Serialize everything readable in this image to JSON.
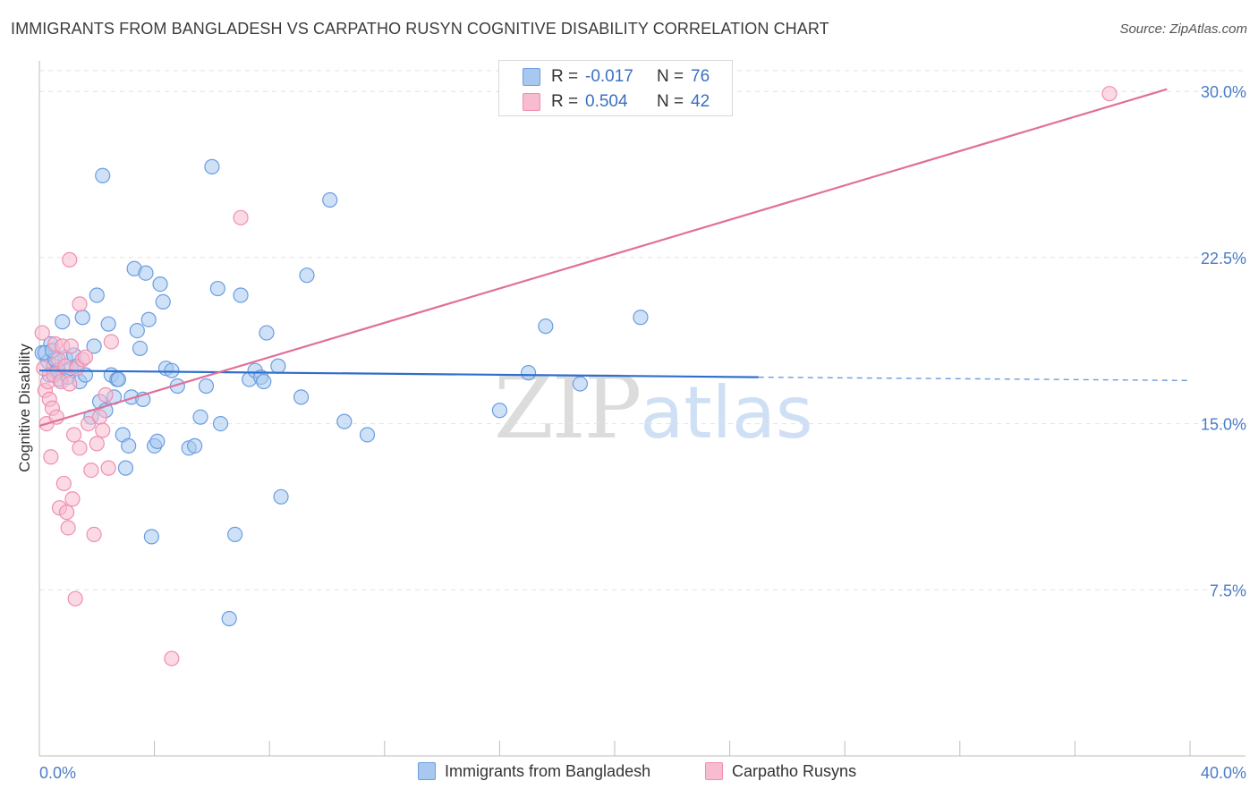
{
  "header": {
    "title": "IMMIGRANTS FROM BANGLADESH VS CARPATHO RUSYN COGNITIVE DISABILITY CORRELATION CHART",
    "source": "Source: ZipAtlas.com"
  },
  "watermark": {
    "zip": "ZIP",
    "atlas": "atlas"
  },
  "legend_top": {
    "rows": [
      {
        "r_label": "R = ",
        "r_value": "-0.017",
        "n_label": "N = ",
        "n_value": "76",
        "color": "#a8c8f0"
      },
      {
        "r_label": "R = ",
        "r_value": "0.504",
        "n_label": "N = ",
        "n_value": "42",
        "color": "#f8bcd0"
      }
    ]
  },
  "legend_bottom": {
    "items": [
      {
        "label": "Immigrants from Bangladesh",
        "color": "#a8c8f0"
      },
      {
        "label": "Carpatho Rusyns",
        "color": "#f8bcd0"
      }
    ]
  },
  "chart_data": {
    "type": "scatter",
    "title": "IMMIGRANTS FROM BANGLADESH VS CARPATHO RUSYN COGNITIVE DISABILITY CORRELATION CHART",
    "ylabel": "Cognitive Disability",
    "xlabel": "",
    "xlim": [
      0,
      40
    ],
    "ylim": [
      0,
      31.3
    ],
    "x_tick_labels": [
      "0.0%",
      "40.0%"
    ],
    "y_ticks": [
      7.5,
      15.0,
      22.5,
      30.0
    ],
    "y_tick_labels": [
      "7.5%",
      "15.0%",
      "22.5%",
      "30.0%"
    ],
    "grid": true,
    "legend_position": "top-center",
    "series": [
      {
        "name": "Immigrants from Bangladesh",
        "color": "#6a9de0",
        "fill": "#a8c8f0",
        "r": -0.017,
        "n": 76,
        "trend": {
          "x": [
            0,
            25
          ],
          "y": [
            17.4,
            17.1
          ],
          "dashed_to": [
            40,
            16.95
          ],
          "color": "#2f6fcc"
        },
        "points": [
          [
            0.1,
            18.2
          ],
          [
            0.3,
            17.8
          ],
          [
            0.4,
            18.6
          ],
          [
            0.5,
            17.6
          ],
          [
            0.6,
            17.3
          ],
          [
            0.7,
            17.0
          ],
          [
            0.8,
            19.6
          ],
          [
            0.9,
            18.0
          ],
          [
            1.0,
            17.1
          ],
          [
            1.1,
            17.5
          ],
          [
            1.2,
            18.1
          ],
          [
            1.3,
            17.6
          ],
          [
            1.4,
            16.9
          ],
          [
            1.5,
            19.8
          ],
          [
            1.6,
            17.2
          ],
          [
            1.8,
            15.3
          ],
          [
            1.9,
            18.5
          ],
          [
            2.0,
            20.8
          ],
          [
            2.1,
            16.0
          ],
          [
            2.2,
            26.2
          ],
          [
            2.3,
            15.6
          ],
          [
            2.4,
            19.5
          ],
          [
            2.5,
            17.2
          ],
          [
            2.6,
            16.2
          ],
          [
            2.7,
            17.0
          ],
          [
            2.9,
            14.5
          ],
          [
            3.0,
            13.0
          ],
          [
            3.1,
            14.0
          ],
          [
            3.2,
            16.2
          ],
          [
            3.3,
            22.0
          ],
          [
            3.4,
            19.2
          ],
          [
            3.5,
            18.4
          ],
          [
            3.6,
            16.1
          ],
          [
            3.7,
            21.8
          ],
          [
            3.8,
            19.7
          ],
          [
            3.9,
            9.9
          ],
          [
            4.0,
            14.0
          ],
          [
            4.1,
            14.2
          ],
          [
            4.2,
            21.3
          ],
          [
            4.3,
            20.5
          ],
          [
            4.4,
            17.5
          ],
          [
            4.6,
            17.4
          ],
          [
            4.8,
            16.7
          ],
          [
            5.2,
            13.9
          ],
          [
            5.4,
            14.0
          ],
          [
            5.6,
            15.3
          ],
          [
            5.8,
            16.7
          ],
          [
            6.0,
            26.6
          ],
          [
            6.2,
            21.1
          ],
          [
            6.3,
            15.0
          ],
          [
            6.6,
            6.2
          ],
          [
            6.8,
            10.0
          ],
          [
            7.0,
            20.8
          ],
          [
            7.3,
            17.0
          ],
          [
            7.5,
            17.4
          ],
          [
            7.7,
            17.1
          ],
          [
            7.8,
            16.9
          ],
          [
            7.9,
            19.1
          ],
          [
            8.3,
            17.6
          ],
          [
            8.4,
            11.7
          ],
          [
            9.1,
            16.2
          ],
          [
            9.3,
            21.7
          ],
          [
            10.1,
            25.1
          ],
          [
            10.6,
            15.1
          ],
          [
            11.4,
            14.5
          ],
          [
            16.0,
            15.6
          ],
          [
            17.0,
            17.3
          ],
          [
            17.6,
            19.4
          ],
          [
            18.8,
            16.8
          ],
          [
            20.9,
            19.8
          ],
          [
            0.2,
            18.2
          ],
          [
            0.35,
            17.2
          ],
          [
            0.55,
            17.9
          ],
          [
            0.45,
            18.3
          ],
          [
            0.65,
            17.4
          ],
          [
            2.75,
            17.0
          ]
        ]
      },
      {
        "name": "Carpatho Rusyns",
        "color": "#ef8fb0",
        "fill": "#f8bcd0",
        "r": 0.504,
        "n": 42,
        "trend": {
          "x": [
            0,
            39.2
          ],
          "y": [
            14.9,
            30.1
          ],
          "color": "#e07099"
        },
        "points": [
          [
            0.1,
            19.1
          ],
          [
            0.15,
            17.5
          ],
          [
            0.2,
            16.5
          ],
          [
            0.25,
            15.0
          ],
          [
            0.3,
            16.9
          ],
          [
            0.35,
            16.1
          ],
          [
            0.4,
            13.5
          ],
          [
            0.45,
            15.7
          ],
          [
            0.5,
            17.2
          ],
          [
            0.55,
            18.6
          ],
          [
            0.6,
            15.3
          ],
          [
            0.65,
            17.9
          ],
          [
            0.7,
            11.2
          ],
          [
            0.75,
            16.9
          ],
          [
            0.8,
            18.5
          ],
          [
            0.85,
            12.3
          ],
          [
            0.9,
            17.6
          ],
          [
            0.95,
            11.0
          ],
          [
            1.0,
            10.3
          ],
          [
            1.05,
            16.8
          ],
          [
            1.1,
            18.5
          ],
          [
            1.15,
            11.6
          ],
          [
            1.2,
            14.5
          ],
          [
            1.25,
            7.1
          ],
          [
            1.3,
            17.5
          ],
          [
            1.4,
            13.9
          ],
          [
            1.5,
            17.9
          ],
          [
            1.6,
            18.0
          ],
          [
            1.7,
            15.0
          ],
          [
            1.8,
            12.9
          ],
          [
            1.9,
            10.0
          ],
          [
            2.0,
            14.1
          ],
          [
            2.1,
            15.3
          ],
          [
            2.2,
            14.7
          ],
          [
            2.3,
            16.3
          ],
          [
            2.4,
            13.0
          ],
          [
            2.5,
            18.7
          ],
          [
            4.6,
            4.4
          ],
          [
            7.0,
            24.3
          ],
          [
            1.05,
            22.4
          ],
          [
            1.4,
            20.4
          ],
          [
            37.2,
            29.9
          ]
        ]
      }
    ]
  }
}
